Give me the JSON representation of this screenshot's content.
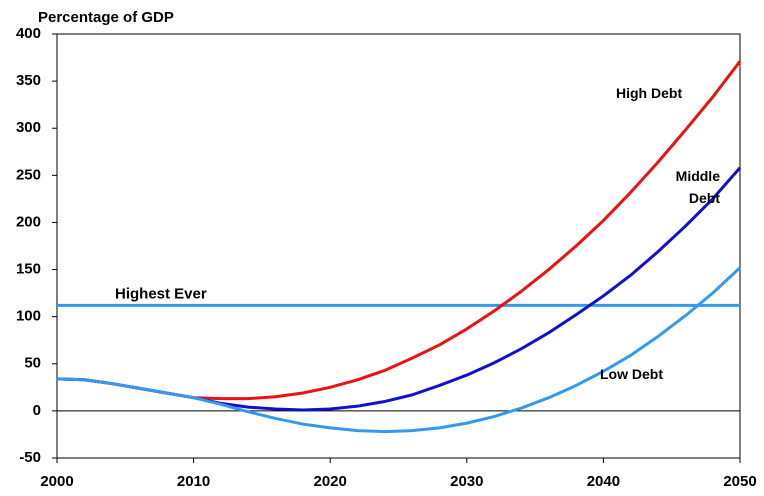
{
  "chart_data": {
    "type": "line",
    "title": "Percentage of GDP",
    "x": [
      2000,
      2002,
      2004,
      2006,
      2008,
      2010,
      2012,
      2014,
      2016,
      2018,
      2020,
      2022,
      2024,
      2026,
      2028,
      2030,
      2032,
      2034,
      2036,
      2038,
      2040,
      2042,
      2044,
      2046,
      2048,
      2050
    ],
    "series": [
      {
        "name": "High Debt",
        "color": "#ee1111",
        "values": [
          34,
          33,
          29,
          24,
          19,
          14,
          13,
          13,
          15,
          19,
          25,
          33,
          43,
          56,
          70,
          87,
          106,
          127,
          150,
          175,
          202,
          232,
          264,
          298,
          333,
          371
        ]
      },
      {
        "name": "Middle Debt",
        "color": "#1111cc",
        "values": [
          34,
          33,
          29,
          24,
          19,
          14,
          8,
          4,
          2,
          1,
          2,
          5,
          10,
          17,
          27,
          38,
          51,
          66,
          83,
          102,
          122,
          144,
          169,
          196,
          225,
          258
        ]
      },
      {
        "name": "Low Debt",
        "color": "#3399ee",
        "values": [
          34,
          33,
          29,
          24,
          19,
          14,
          7,
          -1,
          -8,
          -14,
          -18,
          -21,
          -22,
          -21,
          -18,
          -13,
          -6,
          3,
          14,
          27,
          42,
          59,
          79,
          101,
          125,
          152
        ]
      }
    ],
    "reference_line": {
      "label": "Highest Ever",
      "value": 112,
      "color": "#3399ee"
    },
    "xlim": [
      2000,
      2050
    ],
    "xticks": [
      2000,
      2010,
      2020,
      2030,
      2040,
      2050
    ],
    "ylim": [
      -50,
      400
    ],
    "yticks": [
      -50,
      0,
      50,
      100,
      150,
      200,
      250,
      300,
      350,
      400
    ]
  }
}
